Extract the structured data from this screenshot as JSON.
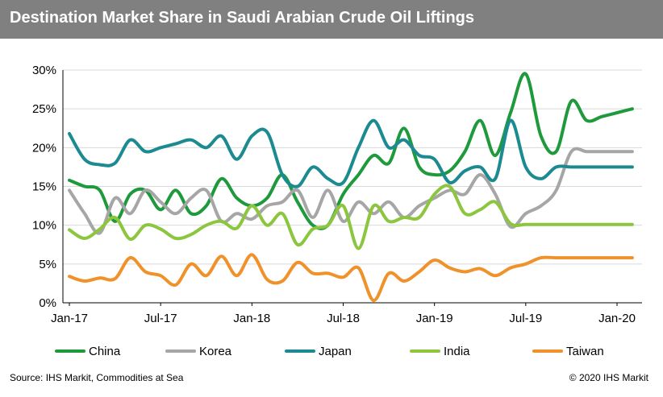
{
  "title": "Destination Market Share in Saudi Arabian Crude Oil Liftings",
  "source": "Source: IHS Markit, Commodities at Sea",
  "copyright": "© 2020 IHS Markit",
  "chart_data": {
    "type": "line",
    "title": "Destination Market Share in Saudi Arabian Crude Oil Liftings",
    "xlabel": "",
    "ylabel": "",
    "x": [
      "2017-01",
      "2017-02",
      "2017-03",
      "2017-04",
      "2017-05",
      "2017-06",
      "2017-07",
      "2017-08",
      "2017-09",
      "2017-10",
      "2017-11",
      "2017-12",
      "2018-01",
      "2018-02",
      "2018-03",
      "2018-04",
      "2018-05",
      "2018-06",
      "2018-07",
      "2018-08",
      "2018-09",
      "2018-10",
      "2018-11",
      "2018-12",
      "2019-01",
      "2019-02",
      "2019-03",
      "2019-04",
      "2019-05",
      "2019-06",
      "2019-07",
      "2019-08",
      "2019-09",
      "2019-10",
      "2019-11",
      "2019-12",
      "2020-01",
      "2020-02"
    ],
    "x_tick_labels": [
      "Jan-17",
      "Jul-17",
      "Jan-18",
      "Jul-18",
      "Jan-19",
      "Jul-19",
      "Jan-20"
    ],
    "x_tick_values": [
      "2017-01",
      "2017-07",
      "2018-01",
      "2018-07",
      "2019-01",
      "2019-07",
      "2020-01"
    ],
    "y_tick_labels": [
      "0%",
      "5%",
      "10%",
      "15%",
      "20%",
      "25%",
      "30%"
    ],
    "y_tick_values": [
      0,
      5,
      10,
      15,
      20,
      25,
      30
    ],
    "ylim": [
      0,
      30
    ],
    "grid": true,
    "legend": "bottom",
    "series": [
      {
        "name": "China",
        "color": "#1e9a3c",
        "values": [
          15.8,
          15.0,
          14.5,
          10.5,
          14.0,
          14.5,
          12.0,
          14.5,
          11.5,
          12.5,
          16.0,
          13.5,
          12.5,
          13.5,
          16.5,
          13.0,
          10.0,
          10.0,
          14.0,
          16.5,
          19.0,
          18.0,
          22.5,
          17.5,
          16.5,
          17.0,
          19.5,
          23.5,
          19.0,
          24.5,
          29.5,
          21.5,
          19.5,
          26.0,
          23.5,
          24.0,
          24.5,
          25.0
        ]
      },
      {
        "name": "Korea",
        "color": "#a6a6a6",
        "values": [
          14.5,
          11.5,
          9.0,
          13.5,
          11.5,
          14.5,
          13.0,
          11.5,
          13.5,
          14.5,
          10.5,
          11.5,
          10.8,
          12.5,
          13.0,
          14.5,
          11.0,
          14.5,
          10.5,
          13.0,
          11.5,
          13.0,
          11.0,
          12.5,
          13.5,
          14.5,
          14.0,
          16.5,
          14.0,
          9.8,
          11.5,
          12.5,
          14.5,
          19.5,
          19.5,
          19.5,
          19.5,
          19.5
        ]
      },
      {
        "name": "Japan",
        "color": "#1b8a91",
        "values": [
          21.8,
          18.5,
          17.8,
          18.0,
          21.0,
          19.5,
          20.0,
          20.5,
          21.0,
          20.0,
          21.5,
          18.5,
          21.5,
          22.0,
          16.5,
          15.0,
          17.5,
          16.0,
          15.5,
          20.0,
          23.5,
          20.0,
          21.0,
          19.0,
          18.5,
          15.5,
          17.0,
          17.5,
          16.0,
          23.5,
          17.5,
          16.0,
          17.5,
          17.5,
          17.5,
          17.5,
          17.5,
          17.5
        ]
      },
      {
        "name": "India",
        "color": "#8cc63f",
        "values": [
          9.4,
          8.3,
          9.5,
          11.0,
          8.2,
          10.0,
          9.5,
          8.3,
          8.8,
          10.0,
          10.5,
          9.6,
          12.5,
          10.0,
          11.5,
          7.5,
          9.5,
          10.0,
          12.5,
          7.0,
          12.5,
          10.5,
          11.0,
          11.0,
          14.0,
          15.0,
          11.5,
          12.0,
          13.0,
          10.2,
          10.1,
          10.1,
          10.1,
          10.1,
          10.1,
          10.1,
          10.1,
          10.1
        ]
      },
      {
        "name": "Taiwan",
        "color": "#f0922b",
        "values": [
          3.4,
          2.8,
          3.2,
          3.1,
          5.8,
          4.0,
          3.5,
          2.3,
          5.0,
          3.5,
          6.0,
          3.5,
          6.2,
          3.0,
          2.8,
          5.2,
          3.8,
          3.8,
          3.3,
          4.5,
          0.3,
          3.8,
          2.8,
          4.0,
          5.5,
          4.5,
          4.0,
          4.4,
          3.5,
          4.5,
          5.0,
          5.8,
          5.8,
          5.8,
          5.8,
          5.8,
          5.8,
          5.8
        ]
      }
    ]
  }
}
